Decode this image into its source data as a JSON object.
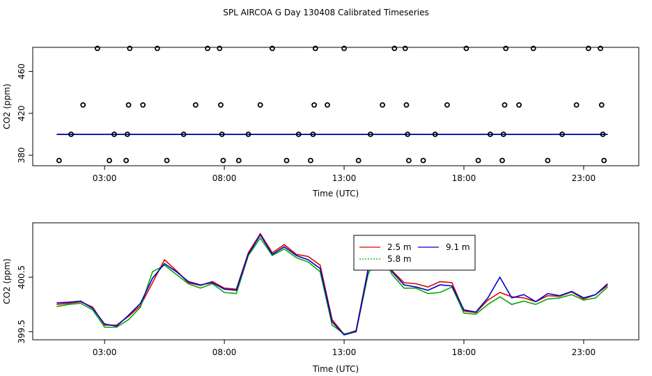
{
  "title": "SPL AIRCOA G  Day 130408  Calibrated Timeseries",
  "chart_data": [
    {
      "type": "scatter",
      "xlabel": "Time (UTC)",
      "ylabel": "CO2 (ppm)",
      "xlim": [
        0,
        25.3
      ],
      "ylim": [
        370,
        483
      ],
      "xticks": [
        3,
        8,
        13,
        18,
        23
      ],
      "xtick_labels": [
        "03:00",
        "08:00",
        "13:00",
        "18:00",
        "23:00"
      ],
      "yticks": [
        380,
        420,
        460
      ],
      "ytick_labels": [
        "380",
        "420",
        "460"
      ],
      "grid": false,
      "points": {
        "marker": "open-circle",
        "color": "#000000",
        "values": [
          [
            1.1,
            375
          ],
          [
            1.6,
            400
          ],
          [
            2.1,
            428
          ],
          [
            2.7,
            482
          ],
          [
            3.2,
            375
          ],
          [
            3.4,
            400
          ],
          [
            3.9,
            375
          ],
          [
            3.95,
            400
          ],
          [
            4.0,
            428
          ],
          [
            4.05,
            482
          ],
          [
            4.6,
            428
          ],
          [
            5.2,
            482
          ],
          [
            5.6,
            375
          ],
          [
            6.3,
            400
          ],
          [
            6.8,
            428
          ],
          [
            7.3,
            482
          ],
          [
            7.8,
            482
          ],
          [
            7.85,
            428
          ],
          [
            7.9,
            400
          ],
          [
            7.95,
            375
          ],
          [
            8.6,
            375
          ],
          [
            9.0,
            400
          ],
          [
            9.5,
            428
          ],
          [
            10.0,
            482
          ],
          [
            10.6,
            375
          ],
          [
            11.1,
            400
          ],
          [
            11.6,
            375
          ],
          [
            11.7,
            400
          ],
          [
            11.75,
            428
          ],
          [
            11.8,
            482
          ],
          [
            12.3,
            428
          ],
          [
            13.0,
            482
          ],
          [
            13.6,
            375
          ],
          [
            14.1,
            400
          ],
          [
            14.6,
            428
          ],
          [
            15.1,
            482
          ],
          [
            15.55,
            482
          ],
          [
            15.6,
            428
          ],
          [
            15.65,
            400
          ],
          [
            15.7,
            375
          ],
          [
            16.3,
            375
          ],
          [
            16.8,
            400
          ],
          [
            17.3,
            428
          ],
          [
            18.1,
            482
          ],
          [
            18.6,
            375
          ],
          [
            19.1,
            400
          ],
          [
            19.6,
            375
          ],
          [
            19.65,
            400
          ],
          [
            19.7,
            428
          ],
          [
            19.75,
            482
          ],
          [
            20.3,
            428
          ],
          [
            20.9,
            482
          ],
          [
            21.5,
            375
          ],
          [
            22.1,
            400
          ],
          [
            22.7,
            428
          ],
          [
            23.2,
            482
          ],
          [
            23.7,
            482
          ],
          [
            23.75,
            428
          ],
          [
            23.8,
            400
          ],
          [
            23.85,
            375
          ]
        ]
      },
      "series": [
        {
          "color": "#dd0000",
          "x": [
            1,
            24
          ],
          "y": [
            400,
            400
          ]
        },
        {
          "color": "#00aa00",
          "x": [
            1,
            24
          ],
          "y": [
            400,
            400
          ]
        },
        {
          "color": "#0000cc",
          "x": [
            1,
            24
          ],
          "y": [
            400,
            400
          ]
        }
      ]
    },
    {
      "type": "line",
      "xlabel": "Time (UTC)",
      "ylabel": "CO2 (ppm)",
      "xlim": [
        0,
        25.3
      ],
      "ylim": [
        399.35,
        401.5
      ],
      "xticks": [
        3,
        8,
        13,
        18,
        23
      ],
      "xtick_labels": [
        "03:00",
        "08:00",
        "13:00",
        "18:00",
        "23:00"
      ],
      "yticks": [
        399.5,
        400.5
      ],
      "ytick_labels": [
        "399.5",
        "400.5"
      ],
      "grid": false,
      "legend": {
        "position": "top-right",
        "entries": [
          {
            "label": "2.5 m",
            "color": "#dd0000",
            "dash": "solid"
          },
          {
            "label": "9.1 m",
            "color": "#0000cc",
            "dash": "solid"
          },
          {
            "label": "5.8 m",
            "color": "#00aa00",
            "dash": "dotted"
          }
        ]
      },
      "x": [
        1.0,
        1.5,
        2.0,
        2.5,
        3.0,
        3.5,
        4.0,
        4.5,
        5.0,
        5.5,
        6.0,
        6.5,
        7.0,
        7.5,
        8.0,
        8.5,
        9.0,
        9.5,
        10.0,
        10.5,
        11.0,
        11.5,
        12.0,
        12.5,
        13.0,
        13.5,
        14.0,
        14.5,
        15.0,
        15.5,
        16.0,
        16.5,
        17.0,
        17.5,
        18.0,
        18.5,
        19.0,
        19.5,
        20.0,
        20.5,
        21.0,
        21.5,
        22.0,
        22.5,
        23.0,
        23.5,
        24.0
      ],
      "series": [
        {
          "name": "2.5 m",
          "color": "#dd0000",
          "values": [
            400.0,
            400.02,
            400.05,
            399.95,
            399.62,
            399.62,
            399.78,
            399.98,
            400.4,
            400.82,
            400.62,
            400.4,
            400.35,
            400.42,
            400.3,
            400.28,
            400.95,
            401.3,
            400.95,
            401.1,
            400.92,
            400.88,
            400.72,
            399.72,
            399.45,
            399.52,
            400.65,
            401.12,
            400.62,
            400.4,
            400.38,
            400.32,
            400.42,
            400.4,
            399.88,
            399.85,
            400.08,
            400.22,
            400.14,
            400.12,
            400.05,
            400.16,
            400.15,
            400.23,
            400.1,
            400.18,
            400.35
          ]
        },
        {
          "name": "5.8 m",
          "color": "#00aa00",
          "values": [
            399.96,
            400.0,
            400.02,
            399.9,
            399.58,
            399.58,
            399.72,
            399.95,
            400.6,
            400.72,
            400.55,
            400.38,
            400.3,
            400.38,
            400.22,
            400.2,
            400.9,
            401.22,
            400.9,
            401.02,
            400.86,
            400.78,
            400.6,
            399.62,
            399.46,
            399.5,
            400.55,
            401.0,
            400.55,
            400.3,
            400.3,
            400.2,
            400.22,
            400.32,
            399.84,
            399.82,
            400.0,
            400.14,
            400.0,
            400.06,
            400.0,
            400.1,
            400.12,
            400.18,
            400.08,
            400.12,
            400.32
          ]
        },
        {
          "name": "9.1 m",
          "color": "#0000cc",
          "values": [
            400.03,
            400.04,
            400.06,
            399.93,
            399.64,
            399.6,
            399.8,
            400.02,
            400.48,
            400.75,
            400.6,
            400.42,
            400.36,
            400.4,
            400.28,
            400.26,
            400.92,
            401.28,
            400.92,
            401.06,
            400.9,
            400.82,
            400.66,
            399.68,
            399.44,
            399.5,
            400.62,
            401.1,
            400.6,
            400.36,
            400.32,
            400.26,
            400.36,
            400.34,
            399.9,
            399.86,
            400.12,
            400.5,
            400.12,
            400.18,
            400.05,
            400.2,
            400.16,
            400.24,
            400.12,
            400.18,
            400.38
          ]
        }
      ]
    }
  ]
}
